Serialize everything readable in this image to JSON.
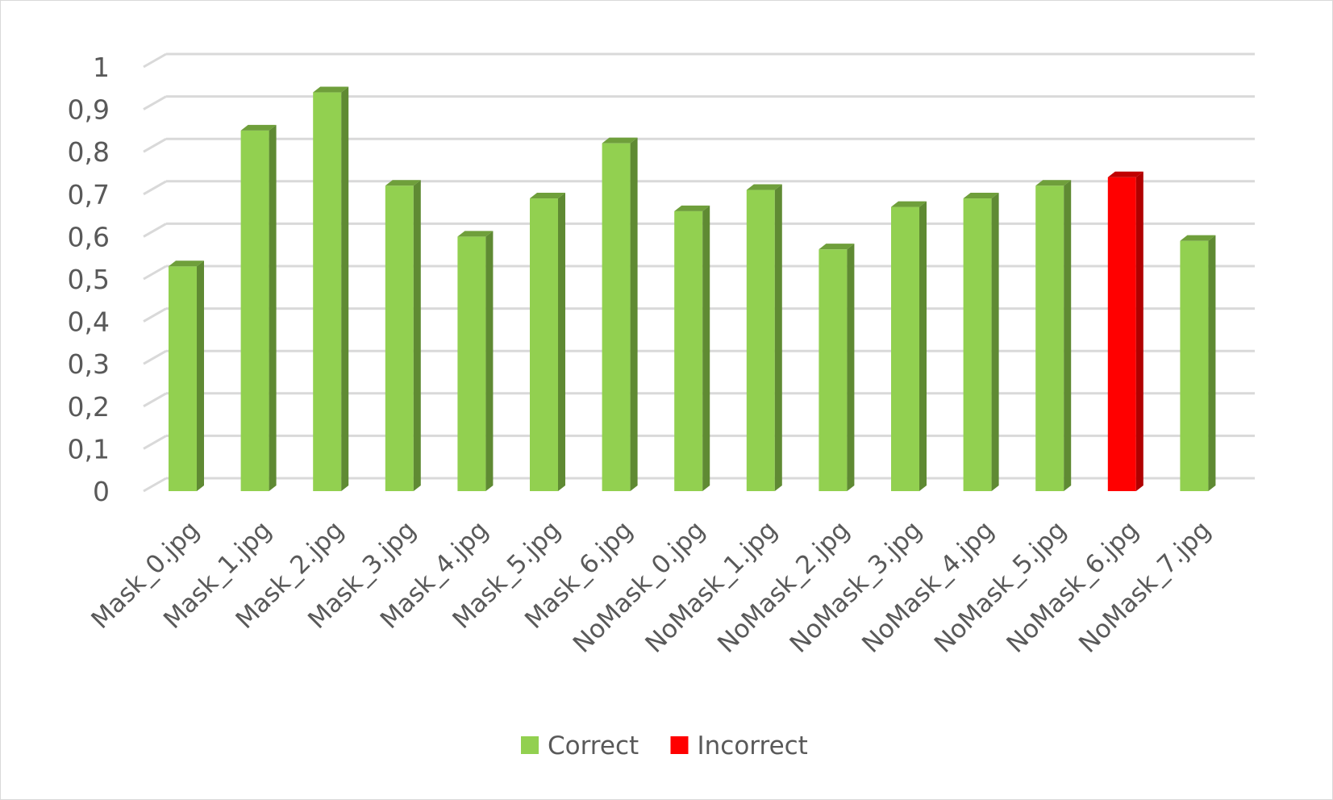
{
  "chart_data": {
    "type": "bar",
    "style": "3d-column",
    "title": "",
    "xlabel": "",
    "ylabel": "",
    "ylim": [
      0,
      1
    ],
    "yticks": [
      "0",
      "0,1",
      "0,2",
      "0,3",
      "0,4",
      "0,5",
      "0,6",
      "0,7",
      "0,8",
      "0,9",
      "1"
    ],
    "grid": true,
    "legend_position": "bottom",
    "categories": [
      "Mask_0.jpg",
      "Mask_1.jpg",
      "Mask_2.jpg",
      "Mask_3.jpg",
      "Mask_4.jpg",
      "Mask_5.jpg",
      "Mask_6.jpg",
      "NoMask_0.jpg",
      "NoMask_1.jpg",
      "NoMask_2.jpg",
      "NoMask_3.jpg",
      "NoMask_4.jpg",
      "NoMask_5.jpg",
      "NoMask_6.jpg",
      "NoMask_7.jpg"
    ],
    "values": [
      0.53,
      0.85,
      0.94,
      0.72,
      0.6,
      0.69,
      0.82,
      0.66,
      0.71,
      0.57,
      0.67,
      0.69,
      0.72,
      0.74,
      0.59
    ],
    "classes": [
      "Correct",
      "Correct",
      "Correct",
      "Correct",
      "Correct",
      "Correct",
      "Correct",
      "Correct",
      "Correct",
      "Correct",
      "Correct",
      "Correct",
      "Correct",
      "Incorrect",
      "Correct"
    ],
    "legend": [
      {
        "name": "Correct",
        "color": "#92d050",
        "side": "#5f8a33",
        "top": "#6f9f3b"
      },
      {
        "name": "Incorrect",
        "color": "#ff0000",
        "side": "#b00000",
        "top": "#c00000"
      }
    ]
  }
}
